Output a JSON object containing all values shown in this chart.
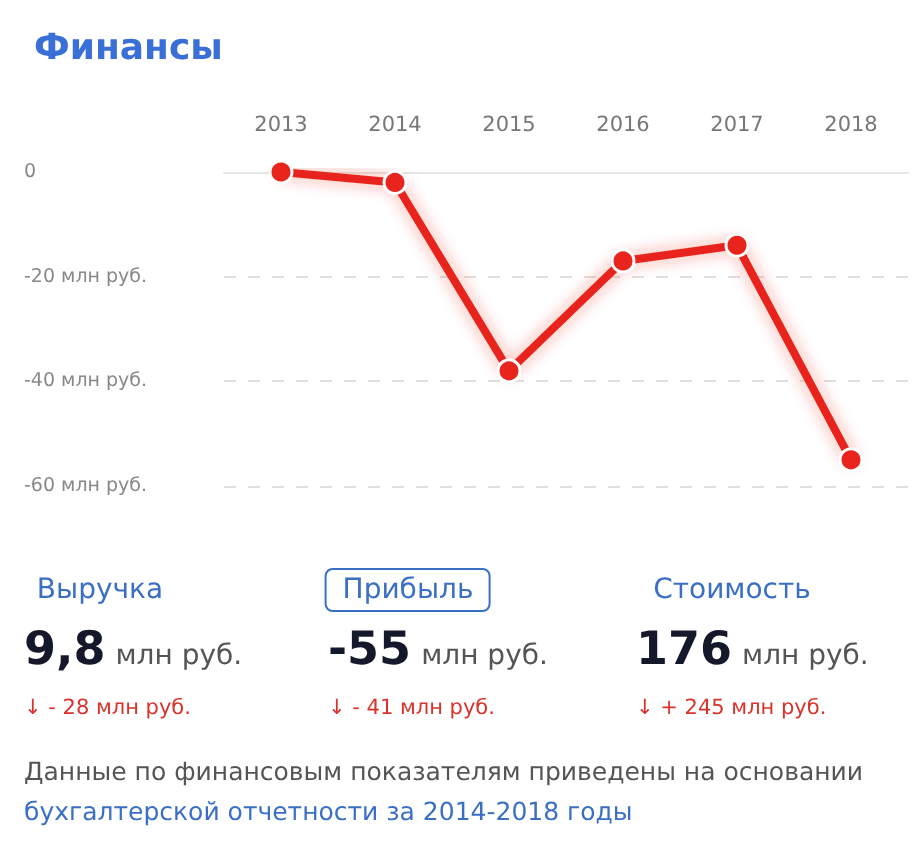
{
  "chart_data": [
    {
      "type": "line",
      "title": "Финансы",
      "categories": [
        "2013",
        "2014",
        "2015",
        "2016",
        "2017",
        "2018"
      ],
      "series": [
        {
          "color": "#e8241c",
          "values": [
            0,
            -2,
            -38,
            -17,
            -14,
            -55
          ]
        }
      ],
      "ylim": [
        -60,
        0
      ],
      "yticks": [
        {
          "value": -60,
          "label": "-60 млн руб."
        },
        {
          "value": -40,
          "label": "-40 млн руб."
        },
        {
          "value": -20,
          "label": "-20 млн руб."
        },
        0
      ],
      "grid": "y",
      "marker": "circle",
      "line_style": "solid"
    },
    {
      "type": "other",
      "annotations": [
        "Выручка",
        "9,8",
        "млн руб.",
        "↓ - 28 млн руб.",
        "Прибыль",
        "-55",
        "млн руб.",
        "↓ - 41 млн руб.",
        "Стоимость",
        "176",
        "млн руб.",
        "↓ + 245 млн руб.",
        "Данные по финансовым показателям приведены на основании",
        "бухгалтерской отчетности за 2014-2018 годы"
      ]
    }
  ]
}
